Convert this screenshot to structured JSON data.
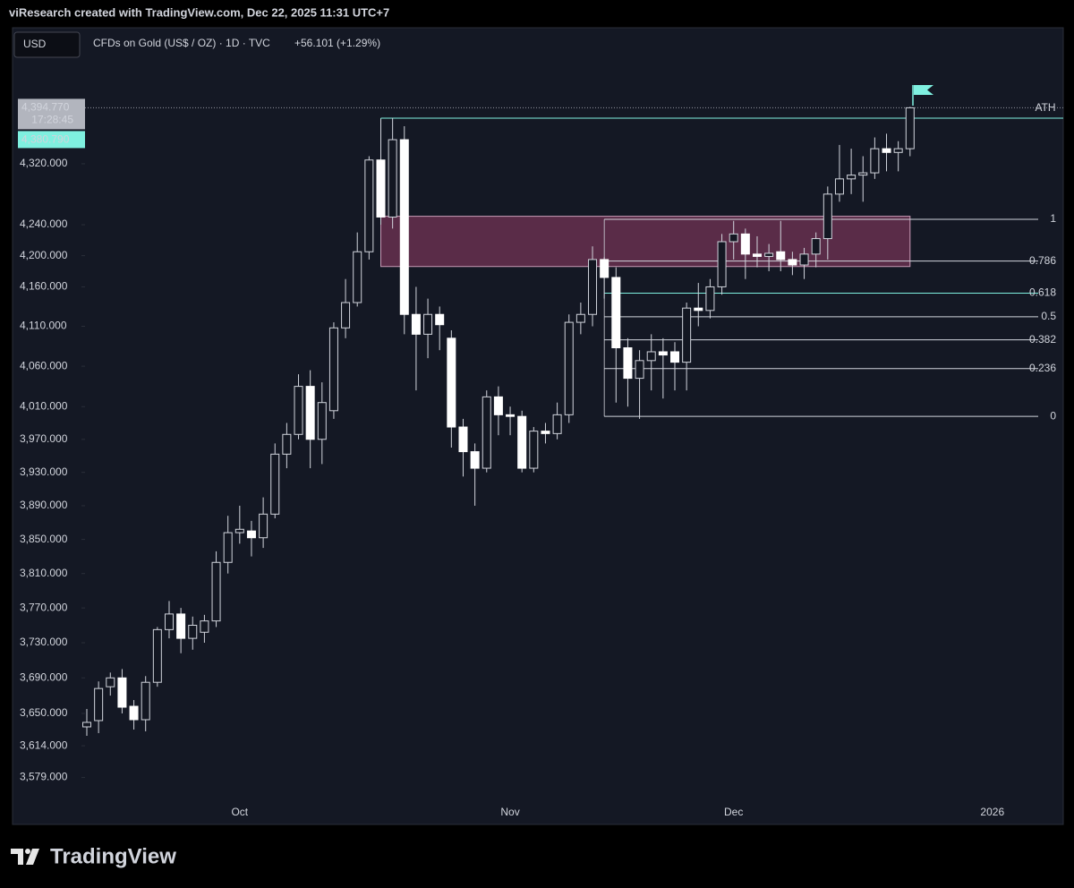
{
  "header": {
    "attribution": "viResearch created with TradingView.com, Dec 22, 2025 11:31 UTC+7",
    "currency": "USD",
    "symbol": "CFDs on Gold (US$ / OZ) · 1D · TVC",
    "change": "+56.101 (+1.29%)"
  },
  "chart_data": {
    "type": "candlestick",
    "log_scale": true,
    "categories": [
      null,
      null,
      null,
      null,
      null,
      null,
      null,
      null,
      null,
      null,
      null,
      null,
      null,
      "Oct",
      null,
      null,
      null,
      null,
      null,
      null,
      null,
      null,
      null,
      null,
      null,
      null,
      null,
      null,
      null,
      null,
      null,
      null,
      null,
      null,
      null,
      null,
      "Nov",
      null,
      null,
      null,
      null,
      null,
      null,
      null,
      null,
      null,
      null,
      null,
      null,
      null,
      null,
      null,
      null,
      null,
      null,
      "Dec",
      null,
      null,
      null,
      null,
      null,
      null,
      null,
      null,
      null,
      null,
      null,
      null,
      null,
      null,
      null,
      null,
      null,
      null,
      null,
      null,
      null,
      "2026"
    ],
    "open": [
      3635,
      3642,
      3680,
      3690,
      3658,
      3643,
      3685,
      3745,
      3763,
      3735,
      3742,
      3755,
      3823,
      3858,
      3860,
      3852,
      3880,
      3952,
      3976,
      4035,
      3970,
      4005,
      4108,
      4140,
      4205,
      4325,
      4250,
      4352,
      4125,
      4100,
      4125,
      4095,
      3985,
      3955,
      3935,
      4022,
      4000,
      3998,
      3935,
      3980,
      3977,
      4000,
      4115,
      4125,
      4195,
      4172,
      4083,
      4045,
      4067,
      4078,
      4078,
      4065,
      4133,
      4130,
      4160,
      4218,
      4228,
      4202,
      4199,
      4205,
      4195,
      4188,
      4202,
      4222,
      4280,
      4300,
      4305,
      4308,
      4340,
      4335,
      4340,
      null,
      null,
      null,
      null,
      null,
      null,
      null
    ],
    "high": [
      3655,
      3686,
      3696,
      3700,
      3665,
      3692,
      3748,
      3778,
      3770,
      3760,
      3762,
      3836,
      3878,
      3890,
      3872,
      3900,
      3965,
      3990,
      4050,
      4055,
      4040,
      4115,
      4170,
      4230,
      4330,
      4380,
      4381,
      4370,
      4160,
      4145,
      4135,
      4105,
      3995,
      3965,
      4030,
      4035,
      4010,
      4005,
      3985,
      3990,
      4015,
      4125,
      4140,
      4212,
      4198,
      4185,
      4095,
      4080,
      4100,
      4095,
      4090,
      4140,
      4165,
      4170,
      4228,
      4245,
      4235,
      4225,
      4215,
      4245,
      4205,
      4210,
      4230,
      4290,
      4345,
      4340,
      4330,
      4355,
      4360,
      4350,
      4396,
      null,
      null,
      null,
      null,
      null,
      null,
      null
    ],
    "low": [
      3625,
      3628,
      3670,
      3650,
      3632,
      3630,
      3680,
      3735,
      3718,
      3722,
      3730,
      3748,
      3810,
      3845,
      3830,
      3840,
      3875,
      3935,
      3970,
      3935,
      3940,
      3995,
      4095,
      4135,
      4195,
      4240,
      4235,
      4100,
      4030,
      4070,
      4080,
      3960,
      3925,
      3890,
      3930,
      3975,
      3975,
      3930,
      3930,
      3965,
      3970,
      3990,
      4100,
      4110,
      4145,
      4015,
      4010,
      3995,
      4030,
      4020,
      4030,
      4030,
      4110,
      4120,
      4150,
      4195,
      4170,
      4185,
      4180,
      4180,
      4175,
      4170,
      4185,
      4195,
      4270,
      4280,
      4270,
      4300,
      4310,
      4310,
      4330,
      null,
      null,
      null,
      null,
      null,
      null,
      null
    ],
    "close": [
      3640,
      3678,
      3690,
      3657,
      3643,
      3685,
      3745,
      3763,
      3735,
      3750,
      3755,
      3823,
      3858,
      3862,
      3852,
      3880,
      3952,
      3976,
      4035,
      3970,
      4015,
      4108,
      4140,
      4205,
      4325,
      4250,
      4352,
      4125,
      4100,
      4125,
      4112,
      3985,
      3955,
      3935,
      4022,
      4000,
      3998,
      3935,
      3980,
      3977,
      4000,
      4115,
      4125,
      4195,
      4172,
      4083,
      4045,
      4067,
      4078,
      4074,
      4065,
      4133,
      4130,
      4160,
      4218,
      4228,
      4202,
      4199,
      4203,
      4195,
      4188,
      4202,
      4222,
      4280,
      4300,
      4305,
      4308,
      4340,
      4335,
      4340,
      4394.77,
      null,
      null,
      null,
      null,
      null,
      null,
      null
    ],
    "ylim": [
      3558,
      4456
    ],
    "yticks": [
      {
        "value": 4320,
        "label": "4,320.000"
      },
      {
        "value": 4240,
        "label": "4,240.000"
      },
      {
        "value": 4200,
        "label": "4,200.000"
      },
      {
        "value": 4160,
        "label": "4,160.000"
      },
      {
        "value": 4110,
        "label": "4,110.000"
      },
      {
        "value": 4060,
        "label": "4,060.000"
      },
      {
        "value": 4010,
        "label": "4,010.000"
      },
      {
        "value": 3970,
        "label": "3,970.000"
      },
      {
        "value": 3930,
        "label": "3,930.000"
      },
      {
        "value": 3890,
        "label": "3,890.000"
      },
      {
        "value": 3850,
        "label": "3,850.000"
      },
      {
        "value": 3810,
        "label": "3,810.000"
      },
      {
        "value": 3770,
        "label": "3,770.000"
      },
      {
        "value": 3730,
        "label": "3,730.000"
      },
      {
        "value": 3690,
        "label": "3,690.000"
      },
      {
        "value": 3650,
        "label": "3,650.000"
      },
      {
        "value": 3614,
        "label": "3,614.000"
      },
      {
        "value": 3579,
        "label": "3,579.000"
      }
    ],
    "up_color": "#131722",
    "down_color": "#ffffff",
    "wick_color": "#d1d4dc",
    "last_price": {
      "value": 4394.77,
      "label": "4,394.770"
    },
    "countdown": "17:28:45",
    "ath": {
      "name": "ATH",
      "value": 4380.79,
      "label": "4,380.790",
      "start": 25,
      "color": "#7ff0e0"
    },
    "zone": {
      "start": 25,
      "end": 70,
      "top": 4251,
      "bottom": 4186,
      "color": "#5a2c48"
    },
    "fib_start": 44,
    "fib_levels": [
      {
        "value": 4247,
        "label": "1",
        "color": "#d1d4dc"
      },
      {
        "value": 4193,
        "label": "0.786",
        "color": "#d1d4dc"
      },
      {
        "value": 4152,
        "label": "0.618",
        "color": "#7ff0e0"
      },
      {
        "value": 4122,
        "label": "0.5",
        "color": "#d1d4dc"
      },
      {
        "value": 4093,
        "label": "0.382",
        "color": "#d1d4dc"
      },
      {
        "value": 4057,
        "label": "0.236",
        "color": "#d1d4dc"
      },
      {
        "value": 3998,
        "label": "0",
        "color": "#d1d4dc"
      }
    ]
  },
  "footer": {
    "logo": "TradingView"
  }
}
